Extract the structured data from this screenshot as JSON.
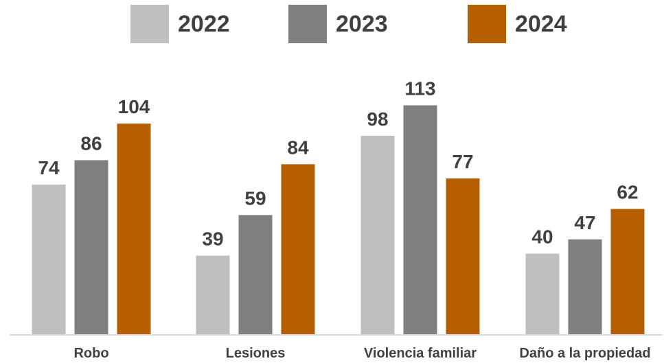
{
  "chart_data": {
    "type": "bar",
    "categories": [
      "Robo",
      "Lesiones",
      "Violencia familiar",
      "Daño a la propiedad"
    ],
    "series": [
      {
        "name": "2022",
        "color": "#bfbfbf",
        "values": [
          74,
          39,
          98,
          40
        ]
      },
      {
        "name": "2023",
        "color": "#7f7f7f",
        "values": [
          86,
          59,
          113,
          47
        ]
      },
      {
        "name": "2024",
        "color": "#b65f00",
        "values": [
          104,
          84,
          77,
          62
        ]
      }
    ],
    "title": "",
    "xlabel": "",
    "ylabel": "",
    "ylim": [
      0,
      130
    ],
    "grid": false,
    "legend": "top-center",
    "data_labels": true
  }
}
